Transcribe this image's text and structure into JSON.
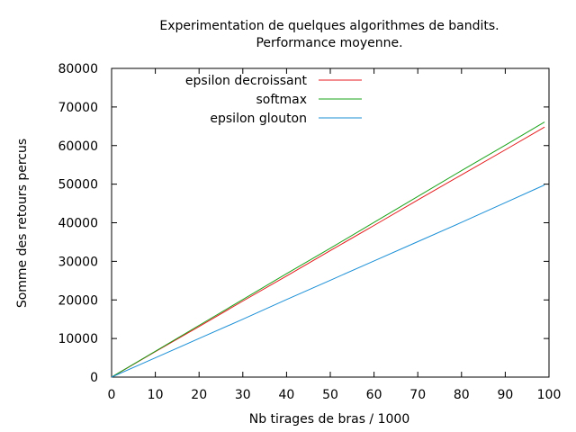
{
  "chart_data": {
    "type": "line",
    "title": "Experimentation de quelques algorithmes de bandits.",
    "subtitle": "Performance moyenne.",
    "xlabel": "Nb tirages de bras / 1000",
    "ylabel": "Somme des retours percus",
    "xlim": [
      0,
      100
    ],
    "ylim": [
      0,
      80000
    ],
    "xticks": [
      0,
      10,
      20,
      30,
      40,
      50,
      60,
      70,
      80,
      90,
      100
    ],
    "yticks": [
      0,
      10000,
      20000,
      30000,
      40000,
      50000,
      60000,
      70000,
      80000
    ],
    "grid": false,
    "legend": "top-left",
    "series": [
      {
        "name": "epsilon decroissant",
        "color": "#e41a1c",
        "x": [
          0,
          10,
          20,
          30,
          40,
          50,
          60,
          70,
          80,
          90,
          99
        ],
        "values": [
          0,
          6600,
          13100,
          19700,
          26200,
          32800,
          39300,
          45900,
          52400,
          58900,
          64800
        ]
      },
      {
        "name": "softmax",
        "color": "#1aa31a",
        "x": [
          0,
          10,
          20,
          30,
          40,
          50,
          60,
          70,
          80,
          90,
          99
        ],
        "values": [
          0,
          6700,
          13400,
          20100,
          26800,
          33400,
          40100,
          46800,
          53500,
          60100,
          66100
        ]
      },
      {
        "name": "epsilon glouton",
        "color": "#1a8fd6",
        "x": [
          0,
          10,
          20,
          30,
          40,
          50,
          60,
          70,
          80,
          90,
          99
        ],
        "values": [
          0,
          5000,
          10000,
          15000,
          20100,
          25100,
          30100,
          35100,
          40100,
          45200,
          49800
        ]
      }
    ]
  }
}
